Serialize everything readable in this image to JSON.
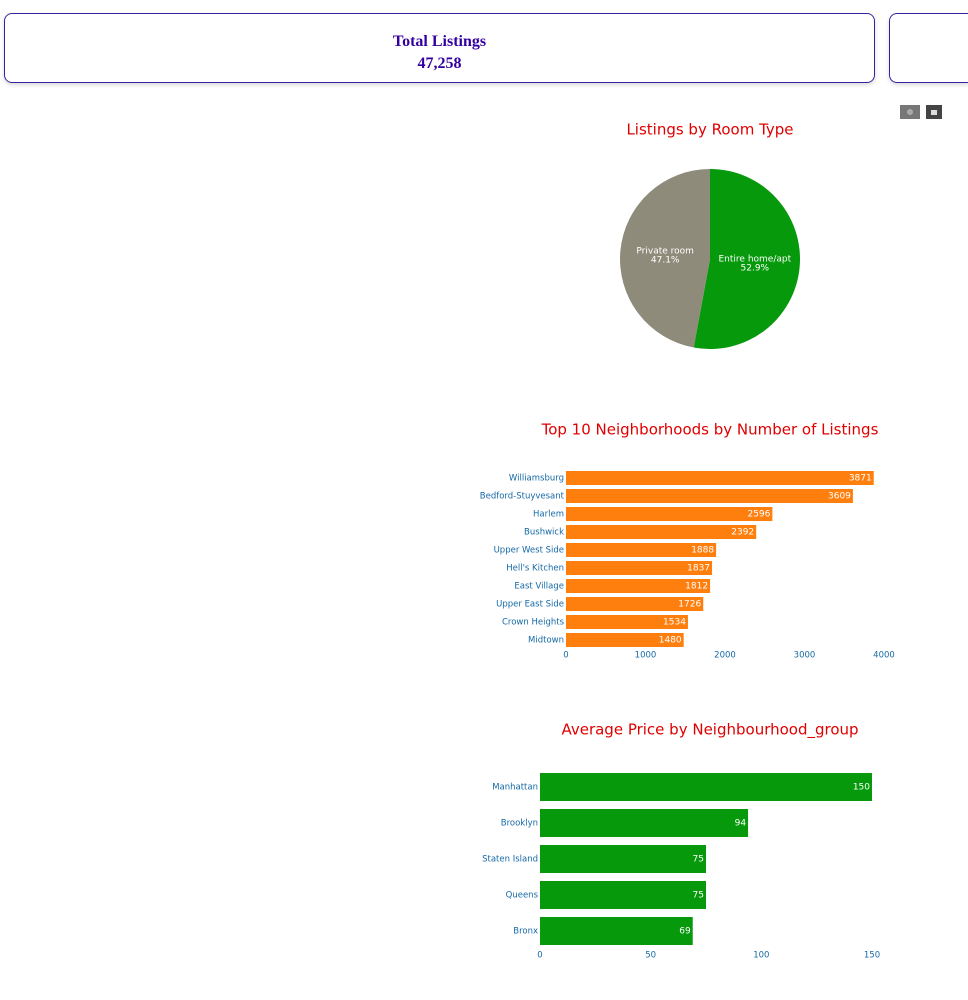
{
  "card": {
    "title": "Total Listings",
    "value": "47,258"
  },
  "chart_data": [
    {
      "type": "pie",
      "title": "Listings by Room Type",
      "labels": [
        "Entire home/apt",
        "Private room"
      ],
      "values": [
        52.9,
        47.1
      ],
      "value_labels": [
        "52.9%",
        "47.1%"
      ],
      "colors": [
        "#05990b",
        "#8f8b7b"
      ]
    },
    {
      "type": "bar",
      "orientation": "horizontal",
      "title": "Top 10 Neighborhoods by Number of Listings",
      "categories": [
        "Williamsburg",
        "Bedford-Stuyvesant",
        "Harlem",
        "Bushwick",
        "Upper West Side",
        "Hell's Kitchen",
        "East Village",
        "Upper East Side",
        "Crown Heights",
        "Midtown"
      ],
      "values": [
        3871,
        3609,
        2596,
        2392,
        1888,
        1837,
        1812,
        1726,
        1534,
        1480
      ],
      "color": "#ff7f0e",
      "xlim": [
        0,
        4000
      ],
      "xticks": [
        0,
        1000,
        2000,
        3000,
        4000
      ]
    },
    {
      "type": "bar",
      "orientation": "horizontal",
      "title": "Average Price by Neighbourhood_group",
      "categories": [
        "Manhattan",
        "Brooklyn",
        "Staten Island",
        "Queens",
        "Bronx"
      ],
      "values": [
        150,
        94,
        75,
        75,
        69
      ],
      "color": "#05990b",
      "xlim": [
        0,
        150
      ],
      "xticks": [
        0,
        50,
        100,
        150
      ]
    }
  ]
}
